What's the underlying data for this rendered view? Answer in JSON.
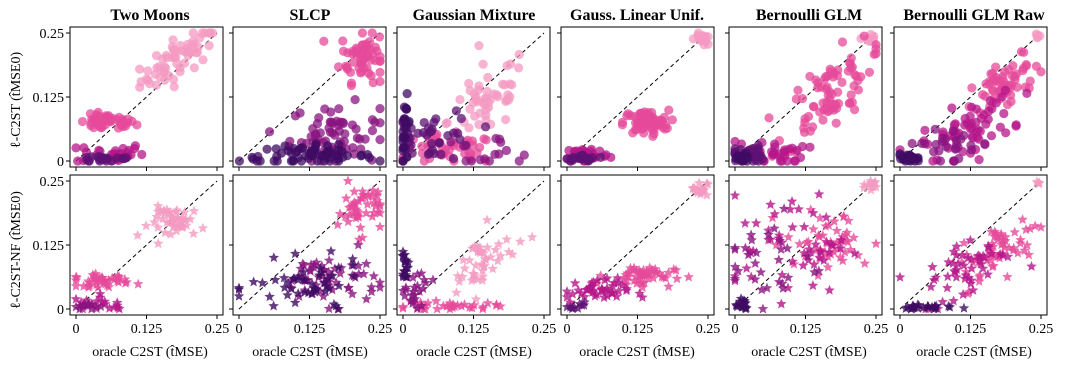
{
  "figure": {
    "columns": [
      "Two Moons",
      "SLCP",
      "Gaussian Mixture",
      "Gauss. Linear Unif.",
      "Bernoulli GLM",
      "Bernoulli GLM Raw"
    ],
    "row_labels": [
      "ℓ-C2ST (t̂MSE0)",
      "ℓ-C2ST-NF (t̂MSE0)"
    ],
    "x_label": "oracle C2ST (t̂MSE)",
    "tick_labels": [
      "0",
      "0.125",
      "0.25"
    ]
  },
  "chart_data": {
    "type": "scatter",
    "xlim": [
      0,
      0.25
    ],
    "ylim": [
      0,
      0.25
    ],
    "xticks": [
      0,
      0.125,
      0.25
    ],
    "yticks": [
      0,
      0.125,
      0.25
    ],
    "grid": false,
    "reference_line": "diagonal y = x (dashed)",
    "markers": {
      "top_row": "circle",
      "bottom_row": "star"
    },
    "colors": [
      "#f49ac1",
      "#e64a9a",
      "#b5178a",
      "#8a1480",
      "#5e1274",
      "#3f0b63"
    ],
    "panels": [
      {
        "row": 0,
        "col": 0,
        "clusters": [
          {
            "color": "#f49ac1",
            "cx": 0.185,
            "cy": 0.205,
            "sx": 0.035,
            "sy": 0.02,
            "n": 60,
            "slope": 0.7
          },
          {
            "color": "#e64a9a",
            "cx": 0.055,
            "cy": 0.075,
            "sx": 0.025,
            "sy": 0.008,
            "n": 45
          },
          {
            "color": "#b5178a",
            "cx": 0.06,
            "cy": 0.015,
            "sx": 0.03,
            "sy": 0.01,
            "n": 30
          },
          {
            "color": "#5e1274",
            "cx": 0.05,
            "cy": 0.004,
            "sx": 0.03,
            "sy": 0.004,
            "n": 20
          }
        ]
      },
      {
        "row": 0,
        "col": 1,
        "clusters": [
          {
            "color": "#e64a9a",
            "cx": 0.22,
            "cy": 0.205,
            "sx": 0.02,
            "sy": 0.025,
            "n": 60
          },
          {
            "color": "#8a1480",
            "cx": 0.17,
            "cy": 0.05,
            "sx": 0.04,
            "sy": 0.03,
            "n": 70
          },
          {
            "color": "#3f0b63",
            "cx": 0.12,
            "cy": 0.01,
            "sx": 0.06,
            "sy": 0.01,
            "n": 60
          }
        ]
      },
      {
        "row": 0,
        "col": 2,
        "clusters": [
          {
            "color": "#f49ac1",
            "cx": 0.15,
            "cy": 0.12,
            "sx": 0.035,
            "sy": 0.035,
            "n": 50,
            "slope": 0.6
          },
          {
            "color": "#e64a9a",
            "cx": 0.08,
            "cy": 0.02,
            "sx": 0.045,
            "sy": 0.015,
            "n": 50
          },
          {
            "color": "#5e1274",
            "cx": 0.05,
            "cy": 0.05,
            "sx": 0.04,
            "sy": 0.025,
            "n": 40
          },
          {
            "color": "#3f0b63",
            "cx": 0.005,
            "cy": 0.06,
            "sx": 0.004,
            "sy": 0.03,
            "n": 25
          },
          {
            "color": "#8a1480",
            "cx": 0.15,
            "cy": 0.02,
            "sx": 0.05,
            "sy": 0.015,
            "n": 15
          }
        ]
      },
      {
        "row": 0,
        "col": 3,
        "clusters": [
          {
            "color": "#f49ac1",
            "cx": 0.238,
            "cy": 0.238,
            "sx": 0.006,
            "sy": 0.006,
            "n": 20
          },
          {
            "color": "#e64a9a",
            "cx": 0.14,
            "cy": 0.075,
            "sx": 0.02,
            "sy": 0.012,
            "n": 70
          },
          {
            "color": "#b5178a",
            "cx": 0.035,
            "cy": 0.012,
            "sx": 0.02,
            "sy": 0.008,
            "n": 45
          },
          {
            "color": "#5e1274",
            "cx": 0.03,
            "cy": 0.004,
            "sx": 0.02,
            "sy": 0.004,
            "n": 20
          }
        ]
      },
      {
        "row": 0,
        "col": 4,
        "clusters": [
          {
            "color": "#f49ac1",
            "cx": 0.238,
            "cy": 0.238,
            "sx": 0.005,
            "sy": 0.005,
            "n": 12
          },
          {
            "color": "#e64a9a",
            "cx": 0.165,
            "cy": 0.13,
            "sx": 0.04,
            "sy": 0.035,
            "n": 80,
            "slope": 0.8
          },
          {
            "color": "#b5178a",
            "cx": 0.055,
            "cy": 0.015,
            "sx": 0.035,
            "sy": 0.012,
            "n": 40
          },
          {
            "color": "#5e1274",
            "cx": 0.02,
            "cy": 0.01,
            "sx": 0.015,
            "sy": 0.01,
            "n": 30
          },
          {
            "color": "#3f0b63",
            "cx": 0.012,
            "cy": 0.005,
            "sx": 0.008,
            "sy": 0.005,
            "n": 15
          }
        ]
      },
      {
        "row": 0,
        "col": 5,
        "clusters": [
          {
            "color": "#f49ac1",
            "cx": 0.245,
            "cy": 0.245,
            "sx": 0.003,
            "sy": 0.003,
            "n": 5
          },
          {
            "color": "#e64a9a",
            "cx": 0.19,
            "cy": 0.15,
            "sx": 0.03,
            "sy": 0.025,
            "n": 60,
            "slope": 0.7
          },
          {
            "color": "#b5178a",
            "cx": 0.12,
            "cy": 0.06,
            "sx": 0.04,
            "sy": 0.025,
            "n": 60,
            "slope": 0.4
          },
          {
            "color": "#8a1480",
            "cx": 0.09,
            "cy": 0.035,
            "sx": 0.04,
            "sy": 0.015,
            "n": 25
          },
          {
            "color": "#3f0b63",
            "cx": 0.015,
            "cy": 0.005,
            "sx": 0.01,
            "sy": 0.004,
            "n": 25
          }
        ]
      },
      {
        "row": 1,
        "col": 0,
        "clusters": [
          {
            "color": "#f49ac1",
            "cx": 0.18,
            "cy": 0.17,
            "sx": 0.025,
            "sy": 0.015,
            "n": 45
          },
          {
            "color": "#e64a9a",
            "cx": 0.045,
            "cy": 0.055,
            "sx": 0.025,
            "sy": 0.006,
            "n": 40
          },
          {
            "color": "#b5178a",
            "cx": 0.05,
            "cy": 0.01,
            "sx": 0.03,
            "sy": 0.008,
            "n": 20
          },
          {
            "color": "#8a1480",
            "cx": 0.02,
            "cy": 0.005,
            "sx": 0.012,
            "sy": 0.004,
            "n": 12
          }
        ]
      },
      {
        "row": 1,
        "col": 1,
        "clusters": [
          {
            "color": "#e64a9a",
            "cx": 0.215,
            "cy": 0.195,
            "sx": 0.02,
            "sy": 0.025,
            "n": 50
          },
          {
            "color": "#8a1480",
            "cx": 0.16,
            "cy": 0.06,
            "sx": 0.045,
            "sy": 0.025,
            "n": 60
          },
          {
            "color": "#3f0b63",
            "cx": 0.12,
            "cy": 0.04,
            "sx": 0.05,
            "sy": 0.025,
            "n": 50
          }
        ]
      },
      {
        "row": 1,
        "col": 2,
        "clusters": [
          {
            "color": "#f49ac1",
            "cx": 0.14,
            "cy": 0.09,
            "sx": 0.03,
            "sy": 0.03,
            "n": 45,
            "slope": 0.7
          },
          {
            "color": "#e64a9a",
            "cx": 0.08,
            "cy": 0.005,
            "sx": 0.045,
            "sy": 0.004,
            "n": 35
          },
          {
            "color": "#8a1480",
            "cx": 0.02,
            "cy": 0.04,
            "sx": 0.015,
            "sy": 0.02,
            "n": 25
          },
          {
            "color": "#3f0b63",
            "cx": 0.004,
            "cy": 0.085,
            "sx": 0.003,
            "sy": 0.015,
            "n": 20
          }
        ]
      },
      {
        "row": 1,
        "col": 3,
        "clusters": [
          {
            "color": "#f49ac1",
            "cx": 0.235,
            "cy": 0.235,
            "sx": 0.007,
            "sy": 0.007,
            "n": 20
          },
          {
            "color": "#e64a9a",
            "cx": 0.13,
            "cy": 0.065,
            "sx": 0.03,
            "sy": 0.01,
            "n": 50
          },
          {
            "color": "#b5178a",
            "cx": 0.05,
            "cy": 0.035,
            "sx": 0.03,
            "sy": 0.012,
            "n": 45
          },
          {
            "color": "#5e1274",
            "cx": 0.015,
            "cy": 0.005,
            "sx": 0.008,
            "sy": 0.004,
            "n": 10
          }
        ]
      },
      {
        "row": 1,
        "col": 4,
        "clusters": [
          {
            "color": "#f49ac1",
            "cx": 0.24,
            "cy": 0.24,
            "sx": 0.006,
            "sy": 0.006,
            "n": 10
          },
          {
            "color": "#e64a9a",
            "cx": 0.17,
            "cy": 0.13,
            "sx": 0.04,
            "sy": 0.03,
            "n": 50
          },
          {
            "color": "#b5178a",
            "cx": 0.1,
            "cy": 0.13,
            "sx": 0.05,
            "sy": 0.05,
            "n": 50
          },
          {
            "color": "#8a1480",
            "cx": 0.07,
            "cy": 0.09,
            "sx": 0.04,
            "sy": 0.05,
            "n": 30
          },
          {
            "color": "#3f0b63",
            "cx": 0.01,
            "cy": 0.01,
            "sx": 0.008,
            "sy": 0.008,
            "n": 20
          }
        ]
      },
      {
        "row": 1,
        "col": 5,
        "clusters": [
          {
            "color": "#f49ac1",
            "cx": 0.245,
            "cy": 0.245,
            "sx": 0.003,
            "sy": 0.003,
            "n": 4
          },
          {
            "color": "#e64a9a",
            "cx": 0.18,
            "cy": 0.12,
            "sx": 0.035,
            "sy": 0.025,
            "n": 60,
            "slope": 0.6
          },
          {
            "color": "#b5178a",
            "cx": 0.12,
            "cy": 0.08,
            "sx": 0.04,
            "sy": 0.03,
            "n": 50,
            "slope": 0.6
          },
          {
            "color": "#3f0b63",
            "cx": 0.045,
            "cy": 0.004,
            "sx": 0.025,
            "sy": 0.003,
            "n": 25
          }
        ]
      }
    ]
  }
}
